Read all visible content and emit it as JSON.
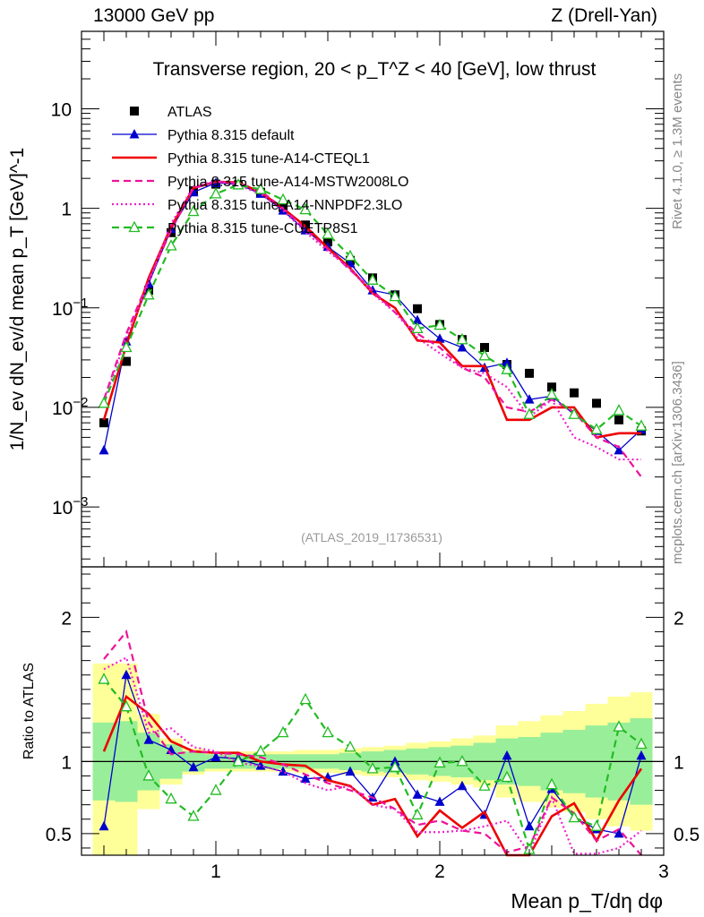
{
  "header": {
    "energy": "13000 GeV pp",
    "process": "Z (Drell-Yan)"
  },
  "side_labels": {
    "rivet": "Rivet 4.1.0, ≥ 1.3M events",
    "mcplots": "mcplots.cern.ch [arXiv:1306.3436]"
  },
  "colors": {
    "atlas": "#000000",
    "default": "#0000cc",
    "cteql1": "#ee0000",
    "mstw": "#ee1199",
    "nnpdf": "#ee22cc",
    "cuetp8s1": "#22bb22",
    "band_yellow": "#ffff99",
    "band_green": "#99ee99"
  },
  "chart_data": {
    "type": "line",
    "title": "Transverse region, 20 < p_T^Z < 40 [GeV], low thrust",
    "analysis_tag": "(ATLAS_2019_I1736531)",
    "xlabel": "Mean p_T/dη dφ",
    "ylabel": "1/N_ev dN_ev/d mean p_T [GeV]^-1",
    "ratio_ylabel": "Ratio to ATLAS",
    "xlim": [
      0.4,
      3.0
    ],
    "ylim": [
      0.00025,
      60
    ],
    "ratio_ylim": [
      0.35,
      2.35
    ],
    "yscale": "log",
    "x_ticks": [
      "1",
      "2",
      "3"
    ],
    "y_ticks": [
      "10^-3",
      "10^-2",
      "10^-1",
      "1",
      "10"
    ],
    "ratio_ticks": [
      "0.5",
      "1",
      "2"
    ],
    "x": [
      0.5,
      0.6,
      0.7,
      0.8,
      0.9,
      1.0,
      1.1,
      1.2,
      1.3,
      1.4,
      1.5,
      1.6,
      1.7,
      1.8,
      1.9,
      2.0,
      2.1,
      2.2,
      2.3,
      2.4,
      2.5,
      2.6,
      2.7,
      2.8,
      2.9
    ],
    "series": [
      {
        "name": "ATLAS",
        "key": "atlas",
        "style": "markers",
        "marker": "square",
        "values": [
          0.007,
          0.029,
          0.15,
          0.57,
          1.5,
          1.75,
          1.72,
          1.45,
          1.02,
          0.68,
          0.46,
          0.3,
          0.2,
          0.135,
          0.098,
          0.068,
          0.048,
          0.04,
          0.027,
          0.022,
          0.016,
          0.014,
          0.011,
          0.0075,
          0.0058
        ]
      },
      {
        "name": "Pythia 8.315 default",
        "key": "default",
        "style": "solid",
        "marker": "triangle",
        "values": [
          0.0037,
          0.046,
          0.175,
          0.62,
          1.45,
          1.8,
          1.75,
          1.4,
          0.95,
          0.6,
          0.41,
          0.28,
          0.15,
          0.135,
          0.075,
          0.049,
          0.04,
          0.025,
          0.028,
          0.012,
          0.013,
          0.0085,
          0.0058,
          0.0037,
          0.006
        ]
      },
      {
        "name": "Pythia 8.315 tune-A14-CTEQL1",
        "key": "cteql1",
        "style": "solid-thick",
        "marker": "none",
        "values": [
          0.0075,
          0.042,
          0.2,
          0.65,
          1.6,
          1.85,
          1.82,
          1.45,
          1.0,
          0.66,
          0.4,
          0.25,
          0.14,
          0.1,
          0.047,
          0.045,
          0.026,
          0.026,
          0.0075,
          0.0075,
          0.01,
          0.01,
          0.005,
          0.0055,
          0.0055
        ]
      },
      {
        "name": "Pythia 8.315 tune-A14-MSTW2008LO",
        "key": "mstw",
        "style": "dashed",
        "marker": "none",
        "values": [
          0.012,
          0.055,
          0.19,
          0.6,
          1.6,
          1.85,
          1.8,
          1.5,
          1.0,
          0.62,
          0.39,
          0.24,
          0.15,
          0.09,
          0.055,
          0.04,
          0.025,
          0.02,
          0.01,
          0.009,
          0.012,
          0.009,
          0.005,
          0.004,
          0.002
        ]
      },
      {
        "name": "Pythia 8.315 tune-A14-NNPDF2.3LO",
        "key": "nnpdf",
        "style": "dotted",
        "marker": "none",
        "values": [
          0.0115,
          0.05,
          0.18,
          0.7,
          1.65,
          1.88,
          1.7,
          1.4,
          0.95,
          0.58,
          0.37,
          0.25,
          0.14,
          0.09,
          0.05,
          0.035,
          0.025,
          0.022,
          0.016,
          0.008,
          0.012,
          0.005,
          0.004,
          0.003,
          0.003
        ]
      },
      {
        "name": "Pythia 8.315 tune-CUETP8S1",
        "key": "cuetp8s1",
        "style": "dashed",
        "marker": "triangle-open",
        "values": [
          0.011,
          0.04,
          0.135,
          0.42,
          0.93,
          1.4,
          1.72,
          1.55,
          1.22,
          0.97,
          0.55,
          0.33,
          0.19,
          0.13,
          0.062,
          0.067,
          0.048,
          0.033,
          0.024,
          0.0085,
          0.0135,
          0.0085,
          0.006,
          0.0093,
          0.0065
        ]
      }
    ],
    "ratios": {
      "default": [
        0.55,
        1.6,
        1.15,
        1.08,
        0.96,
        1.03,
        1.02,
        0.97,
        0.93,
        0.88,
        0.89,
        0.93,
        0.75,
        1.0,
        0.77,
        0.72,
        0.83,
        0.63,
        1.04,
        0.55,
        0.81,
        0.61,
        0.53,
        0.5,
        1.04
      ],
      "cteql1": [
        1.07,
        1.45,
        1.33,
        1.14,
        1.07,
        1.06,
        1.06,
        1.0,
        0.98,
        0.97,
        0.87,
        0.83,
        0.7,
        0.74,
        0.48,
        0.66,
        0.54,
        0.65,
        0.28,
        0.34,
        0.62,
        0.71,
        0.45,
        0.73,
        0.95
      ],
      "mstw": [
        1.71,
        1.9,
        1.27,
        1.05,
        1.07,
        1.06,
        1.05,
        1.03,
        0.98,
        0.91,
        0.85,
        0.8,
        0.75,
        0.67,
        0.56,
        0.59,
        0.52,
        0.5,
        0.37,
        0.41,
        0.75,
        0.64,
        0.45,
        0.53,
        0.34
      ],
      "nnpdf": [
        1.64,
        1.72,
        1.2,
        1.23,
        1.1,
        1.07,
        0.99,
        0.97,
        0.93,
        0.85,
        0.8,
        0.83,
        0.7,
        0.67,
        0.51,
        0.51,
        0.52,
        0.55,
        0.59,
        0.36,
        0.75,
        0.36,
        0.36,
        0.4,
        0.52
      ],
      "cuetp8s1": [
        1.57,
        1.38,
        0.9,
        0.74,
        0.62,
        0.8,
        1.0,
        1.07,
        1.2,
        1.43,
        1.2,
        1.1,
        0.95,
        0.96,
        0.63,
        0.99,
        1.0,
        0.83,
        0.89,
        0.39,
        0.84,
        0.61,
        0.55,
        1.24,
        1.12
      ]
    },
    "ratio_band_yellow_halfwidth": [
      0.68,
      0.68,
      0.33,
      0.16,
      0.09,
      0.07,
      0.07,
      0.07,
      0.07,
      0.08,
      0.08,
      0.09,
      0.1,
      0.11,
      0.13,
      0.14,
      0.16,
      0.18,
      0.25,
      0.28,
      0.32,
      0.35,
      0.4,
      0.45,
      0.48
    ],
    "ratio_band_green_halfwidth": [
      0.27,
      0.28,
      0.2,
      0.12,
      0.07,
      0.05,
      0.05,
      0.05,
      0.05,
      0.05,
      0.05,
      0.06,
      0.07,
      0.08,
      0.09,
      0.1,
      0.11,
      0.13,
      0.16,
      0.17,
      0.2,
      0.22,
      0.25,
      0.27,
      0.3
    ],
    "legend_position": "top-left"
  }
}
